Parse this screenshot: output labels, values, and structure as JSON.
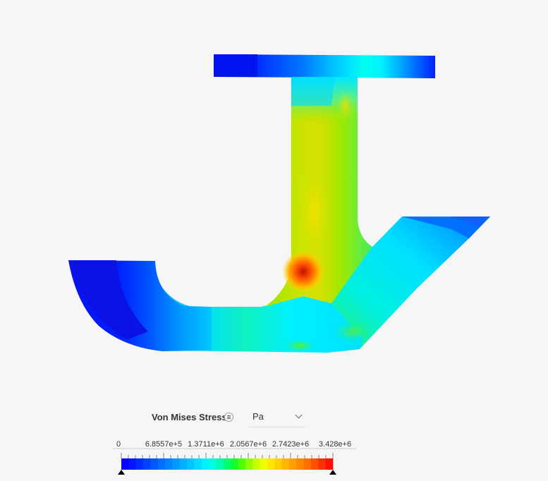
{
  "legend": {
    "title": "Von Mises Stress",
    "menu_icon": "menu-lines-icon",
    "unit_options": [
      "Pa"
    ],
    "unit_selected": "Pa",
    "unit_chevron_icon": "chevron-down-icon",
    "tick_labels": [
      "0",
      "6.8557e+5",
      "1.3711e+6",
      "2.0567e+6",
      "2.7423e+6",
      "3.428e+6"
    ],
    "range": [
      0,
      3428000
    ],
    "colors": [
      "#0a00ff",
      "#0016ff",
      "#002cff",
      "#0042ff",
      "#0058ff",
      "#006eff",
      "#0084ff",
      "#009aff",
      "#00b0ff",
      "#00c6ff",
      "#00dcff",
      "#00f2ff",
      "#00ffe0",
      "#00ffb0",
      "#00ff70",
      "#10ff30",
      "#50ff00",
      "#90ff00",
      "#c8ff00",
      "#f0ff00",
      "#ffe800",
      "#ffd000",
      "#ffb800",
      "#ffa000",
      "#ff8800",
      "#ff7000",
      "#ff5000",
      "#ff3000",
      "#ff1000"
    ]
  }
}
